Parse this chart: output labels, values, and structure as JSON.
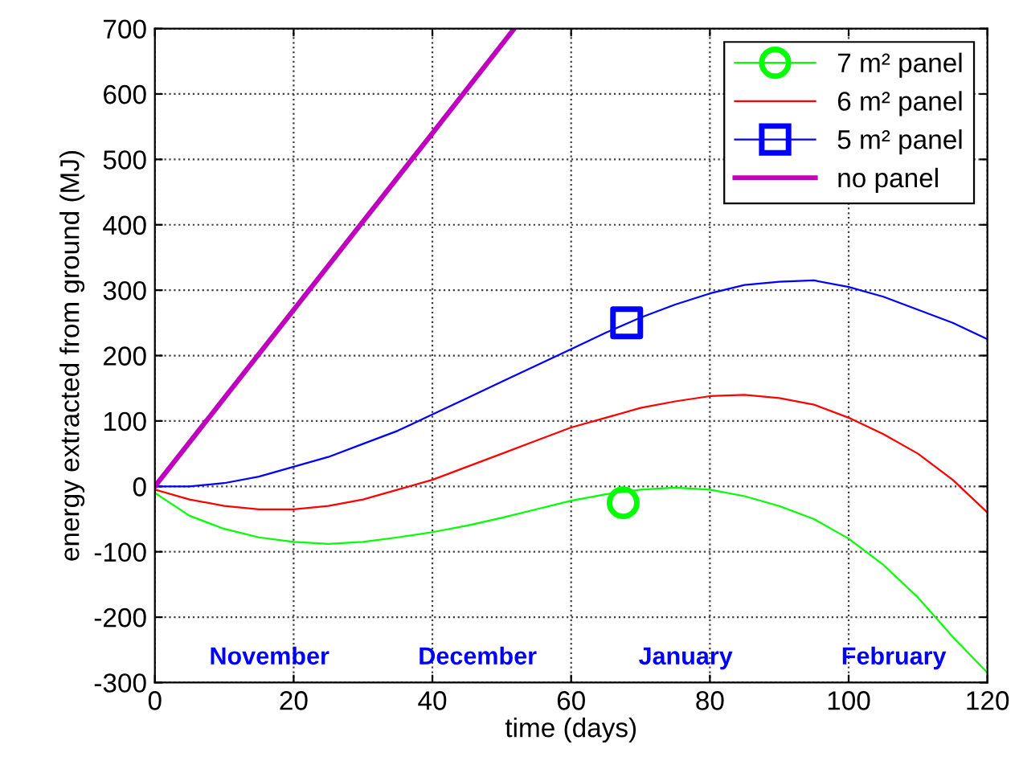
{
  "chart_data": {
    "type": "line",
    "xlabel": "time (days)",
    "ylabel": "energy extracted from ground (MJ)",
    "xlim": [
      0,
      120
    ],
    "xticks": [
      0,
      20,
      40,
      60,
      80,
      100,
      120
    ],
    "ylim": [
      -300,
      700
    ],
    "yticks": [
      -300,
      -200,
      -100,
      0,
      100,
      200,
      300,
      400,
      500,
      600,
      700
    ],
    "grid": true,
    "legend": "top right",
    "annotations": [
      "November",
      "December",
      "January",
      "February"
    ],
    "series": [
      {
        "name": "7 m² panel",
        "color": "#00ff00",
        "x": [
          0,
          5,
          10,
          15,
          20,
          25,
          30,
          35,
          40,
          45,
          50,
          55,
          60,
          65,
          70,
          75,
          80,
          85,
          90,
          95,
          100,
          105,
          110,
          115,
          120
        ],
        "values": [
          -10,
          -45,
          -65,
          -78,
          -85,
          -88,
          -85,
          -78,
          -70,
          -60,
          -48,
          -35,
          -22,
          -12,
          -5,
          -2,
          -5,
          -15,
          -30,
          -50,
          -80,
          -120,
          -170,
          -230,
          -285
        ]
      },
      {
        "type": "scatter",
        "color": "#00ff00",
        "marker": "circle",
        "x": [
          67.5
        ],
        "values": [
          -25
        ]
      },
      {
        "name": "6 m² panel",
        "color": "#ff0000",
        "x": [
          0,
          5,
          10,
          15,
          20,
          25,
          30,
          35,
          40,
          45,
          50,
          55,
          60,
          65,
          70,
          75,
          80,
          85,
          90,
          95,
          100,
          105,
          110,
          115,
          120
        ],
        "values": [
          -5,
          -20,
          -30,
          -35,
          -35,
          -30,
          -20,
          -5,
          10,
          30,
          50,
          70,
          90,
          105,
          120,
          130,
          138,
          140,
          135,
          125,
          105,
          80,
          50,
          10,
          -40
        ]
      },
      {
        "name": "5 m² panel",
        "color": "#0000ff",
        "x": [
          0,
          5,
          10,
          15,
          20,
          25,
          30,
          35,
          40,
          45,
          50,
          55,
          60,
          65,
          70,
          75,
          80,
          85,
          90,
          95,
          100,
          105,
          110,
          115,
          120
        ],
        "values": [
          0,
          0,
          5,
          15,
          30,
          45,
          65,
          85,
          110,
          135,
          160,
          185,
          210,
          235,
          258,
          278,
          295,
          308,
          313,
          315,
          305,
          290,
          270,
          250,
          225
        ]
      },
      {
        "type": "scatter",
        "color": "#0000ff",
        "marker": "square",
        "x": [
          68
        ],
        "values": [
          250
        ]
      },
      {
        "name": "no panel",
        "color": "#bf00bf",
        "x": [
          0,
          10,
          20,
          30,
          40,
          51.8
        ],
        "values": [
          0,
          135,
          270,
          405,
          540,
          700
        ]
      }
    ]
  }
}
